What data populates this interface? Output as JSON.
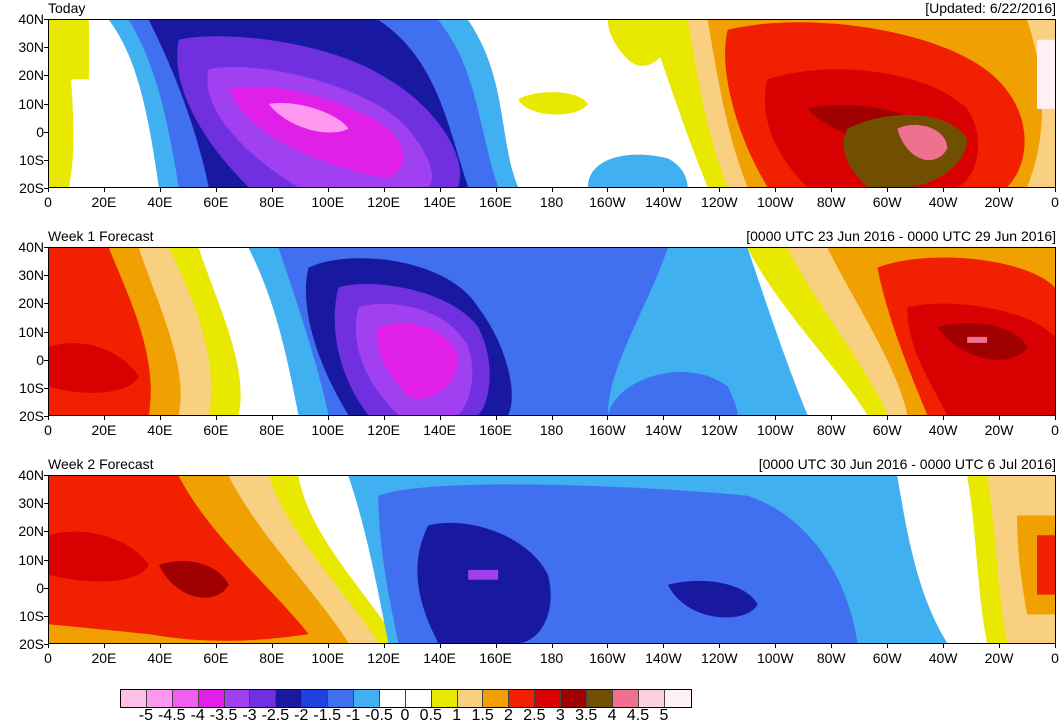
{
  "panels": [
    {
      "title": "Today",
      "date": "[Updated: 6/22/2016]"
    },
    {
      "title": "Week 1 Forecast",
      "date": "[0000 UTC 23 Jun 2016 - 0000 UTC 29 Jun 2016]"
    },
    {
      "title": "Week 2 Forecast",
      "date": "[0000 UTC 30 Jun 2016 - 0000 UTC 6 Jul 2016]"
    }
  ],
  "lat_labels": [
    "40N",
    "30N",
    "20N",
    "10N",
    "0",
    "10S",
    "20S"
  ],
  "lon_labels": [
    "0",
    "20E",
    "40E",
    "60E",
    "80E",
    "100E",
    "120E",
    "140E",
    "160E",
    "180",
    "160W",
    "140W",
    "120W",
    "100W",
    "80W",
    "60W",
    "40W",
    "20W",
    "0"
  ],
  "colorbar": {
    "labels": [
      "-5",
      "-4.5",
      "-4",
      "-3.5",
      "-3",
      "-2.5",
      "-2",
      "-1.5",
      "-1",
      "-0.5",
      "0",
      "0.5",
      "1",
      "1.5",
      "2",
      "2.5",
      "3",
      "3.5",
      "4",
      "4.5",
      "5"
    ],
    "colors": [
      "#ffc0e8",
      "#ff98f0",
      "#f060f0",
      "#e020e8",
      "#a040f0",
      "#7030e0",
      "#1818a0",
      "#2040e0",
      "#4070f0",
      "#40b0f0",
      "#ffffff",
      "#ffffff",
      "#e8e800",
      "#f8d080",
      "#f0a000",
      "#f02000",
      "#d80000",
      "#a00000",
      "#705000",
      "#f07090",
      "#fcd0e0",
      "#fff0f4"
    ]
  },
  "legend_colors": {
    "neg_strong": "#e020e8",
    "neg_mid": "#7030e0",
    "neg_low": "#2040e0",
    "neg_weak": "#40b0f0",
    "pos_weak": "#e8e800",
    "pos_low": "#f8d080",
    "pos_mid": "#f0a000",
    "pos_high": "#f02000",
    "pos_strong": "#a00000",
    "pos_max": "#705000",
    "pos_peak": "#f07090"
  }
}
